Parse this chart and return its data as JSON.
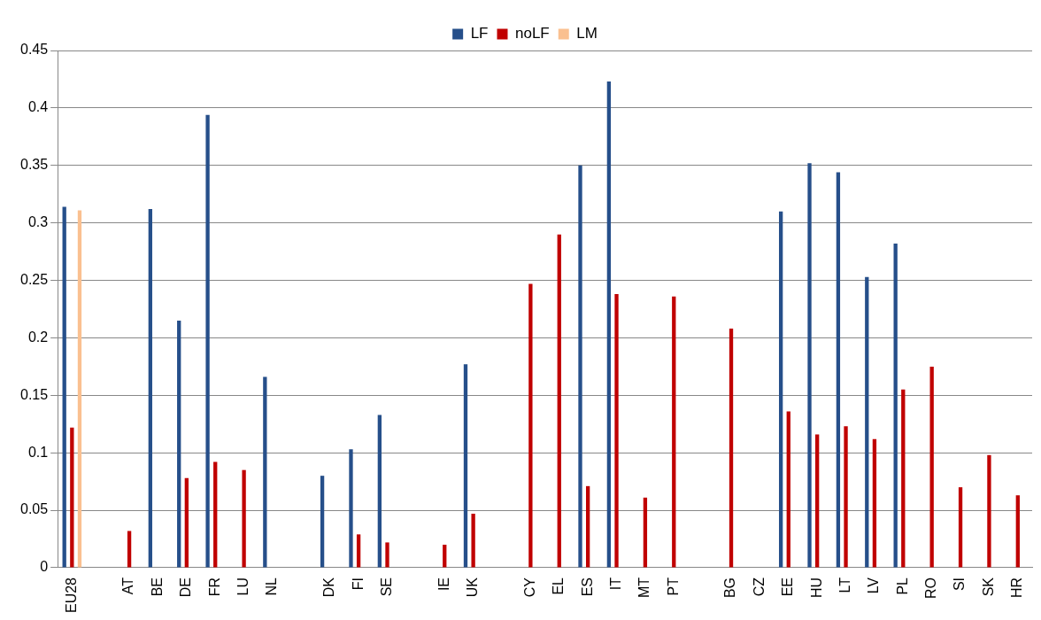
{
  "chart_data": {
    "type": "bar",
    "categories": [
      "EU28",
      null,
      "AT",
      "BE",
      "DE",
      "FR",
      "LU",
      "NL",
      null,
      "DK",
      "FI",
      "SE",
      null,
      "IE",
      "UK",
      null,
      "CY",
      "EL",
      "ES",
      "IT",
      "MT",
      "PT",
      null,
      "BG",
      "CZ",
      "EE",
      "HU",
      "LT",
      "LV",
      "PL",
      "RO",
      "SI",
      "SK",
      "HR"
    ],
    "series": [
      {
        "name": "LF",
        "color": "#264f8a",
        "values": [
          0.314,
          null,
          null,
          0.312,
          0.215,
          0.394,
          null,
          0.166,
          null,
          0.08,
          0.103,
          0.133,
          null,
          null,
          0.177,
          null,
          null,
          null,
          0.35,
          0.423,
          null,
          null,
          null,
          null,
          null,
          0.31,
          0.352,
          0.344,
          0.253,
          0.282,
          null,
          null,
          null,
          null
        ]
      },
      {
        "name": "noLF",
        "color": "#c00000",
        "values": [
          0.122,
          null,
          0.032,
          null,
          0.078,
          0.092,
          0.085,
          null,
          null,
          null,
          0.029,
          0.022,
          null,
          0.02,
          0.047,
          null,
          0.247,
          0.29,
          0.071,
          0.238,
          0.061,
          0.236,
          null,
          0.208,
          null,
          0.136,
          0.116,
          0.123,
          0.112,
          0.155,
          0.175,
          0.07,
          0.098,
          0.063
        ]
      },
      {
        "name": "LM",
        "color": "#fac090",
        "values": [
          0.311,
          null,
          null,
          null,
          null,
          null,
          null,
          null,
          null,
          null,
          null,
          null,
          null,
          null,
          null,
          null,
          null,
          null,
          null,
          null,
          null,
          null,
          null,
          null,
          null,
          null,
          null,
          null,
          null,
          null,
          null,
          null,
          null,
          null
        ]
      }
    ],
    "ylim": [
      0,
      0.45
    ],
    "yticks": [
      0,
      0.05,
      0.1,
      0.15,
      0.2,
      0.25,
      0.3,
      0.35,
      0.4,
      0.45
    ],
    "grid": "y",
    "legend": "top"
  }
}
